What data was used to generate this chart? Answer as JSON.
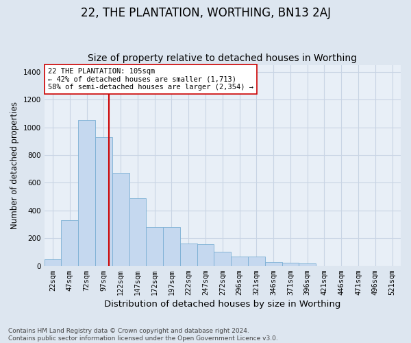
{
  "title": "22, THE PLANTATION, WORTHING, BN13 2AJ",
  "subtitle": "Size of property relative to detached houses in Worthing",
  "xlabel": "Distribution of detached houses by size in Worthing",
  "ylabel": "Number of detached properties",
  "bar_labels": [
    "22sqm",
    "47sqm",
    "72sqm",
    "97sqm",
    "122sqm",
    "147sqm",
    "172sqm",
    "197sqm",
    "222sqm",
    "247sqm",
    "272sqm",
    "296sqm",
    "321sqm",
    "346sqm",
    "371sqm",
    "396sqm",
    "421sqm",
    "446sqm",
    "471sqm",
    "496sqm",
    "521sqm"
  ],
  "bar_values": [
    50,
    330,
    1050,
    930,
    670,
    490,
    280,
    280,
    160,
    155,
    100,
    70,
    70,
    30,
    25,
    20,
    0,
    0,
    0,
    0,
    0
  ],
  "bar_color": "#c5d8ef",
  "bar_edge_color": "#7aafd4",
  "vline_color": "#cc0000",
  "annotation_text": "22 THE PLANTATION: 105sqm\n← 42% of detached houses are smaller (1,713)\n58% of semi-detached houses are larger (2,354) →",
  "annotation_box_color": "#ffffff",
  "annotation_box_edge": "#cc0000",
  "ylim": [
    0,
    1450
  ],
  "yticks": [
    0,
    200,
    400,
    600,
    800,
    1000,
    1200,
    1400
  ],
  "bg_color": "#dde6f0",
  "plot_bg_color": "#e8eff7",
  "grid_color": "#c8d4e4",
  "footer_text": "Contains HM Land Registry data © Crown copyright and database right 2024.\nContains public sector information licensed under the Open Government Licence v3.0.",
  "title_fontsize": 12,
  "subtitle_fontsize": 10,
  "xlabel_fontsize": 9.5,
  "ylabel_fontsize": 8.5,
  "tick_fontsize": 7.5,
  "footer_fontsize": 6.5,
  "annot_fontsize": 7.5
}
